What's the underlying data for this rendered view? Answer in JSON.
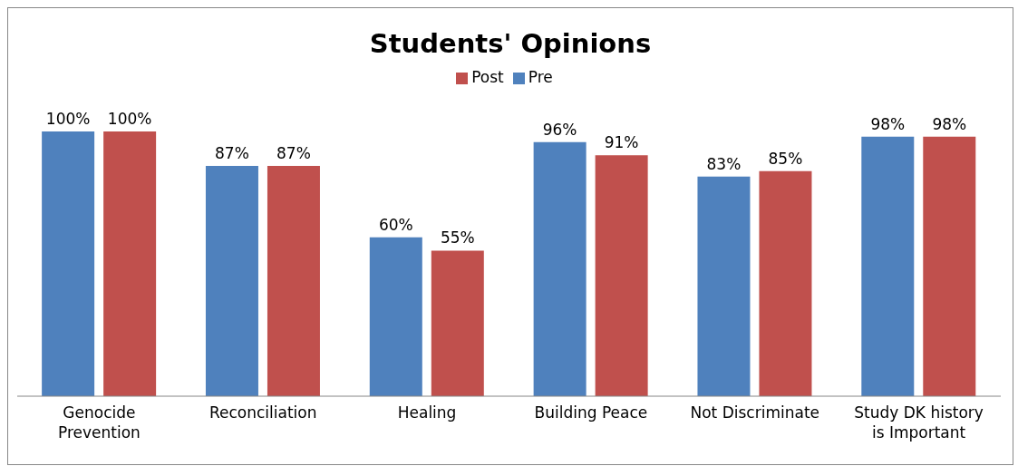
{
  "chart_data": {
    "type": "bar",
    "title": "Students' Opinions",
    "categories": [
      "Genocide Prevention",
      "Reconciliation",
      "Healing",
      "Building Peace",
      "Not Discriminate",
      "Study DK history is Important"
    ],
    "series": [
      {
        "name": "Pre",
        "color": "#4f81bd",
        "values": [
          100,
          87,
          60,
          96,
          83,
          98
        ],
        "value_labels": [
          "100%",
          "87%",
          "60%",
          "96%",
          "83%",
          "98%"
        ]
      },
      {
        "name": "Post",
        "color": "#c0504d",
        "values": [
          100,
          87,
          55,
          91,
          85,
          98
        ],
        "value_labels": [
          "100%",
          "87%",
          "55%",
          "91%",
          "85%",
          "98%"
        ]
      }
    ],
    "legend": "top",
    "tick_labels": "x"
  }
}
